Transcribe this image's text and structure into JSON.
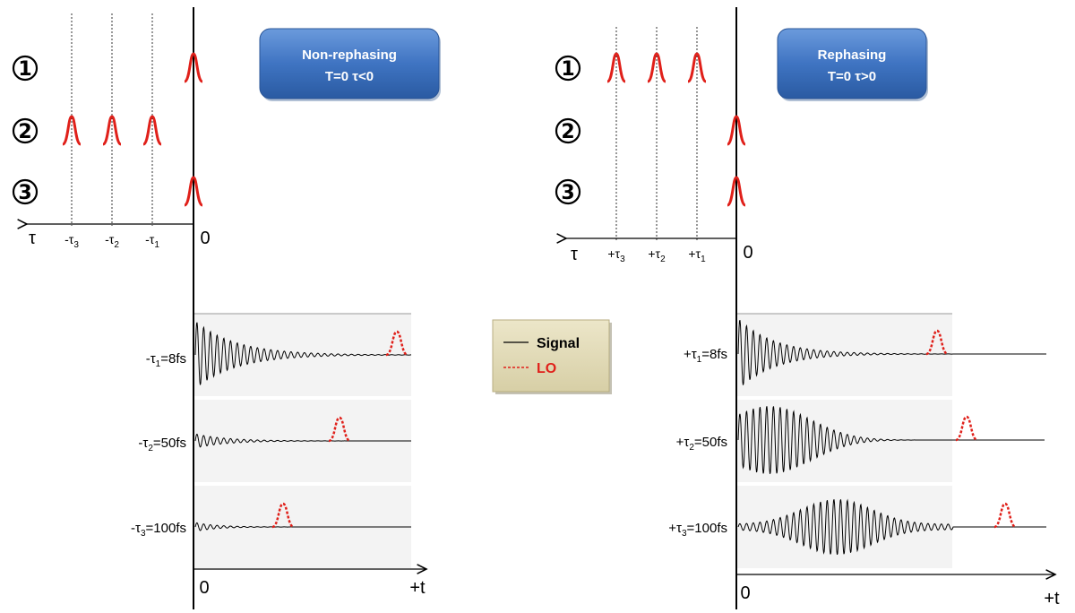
{
  "left_panel": {
    "title_line1": "Non-rephasing",
    "title_line2": "T=0  τ<0",
    "pulse_labels": [
      "1",
      "2",
      "3"
    ],
    "tau_axis_label": "τ",
    "tau_ticks": [
      {
        "sign": "-",
        "sub": "3"
      },
      {
        "sign": "-",
        "sub": "2"
      },
      {
        "sign": "-",
        "sub": "1"
      }
    ],
    "origin_label": "0",
    "time_origin_label": "0",
    "time_axis_label": "+t",
    "traces": [
      {
        "pre": "-τ",
        "sub": "1",
        "post": "=8fs"
      },
      {
        "pre": "-τ",
        "sub": "2",
        "post": "=50fs"
      },
      {
        "pre": "-τ",
        "sub": "3",
        "post": "=100fs"
      }
    ]
  },
  "right_panel": {
    "title_line1": "Rephasing",
    "title_line2": "T=0  τ>0",
    "pulse_labels": [
      "1",
      "2",
      "3"
    ],
    "tau_axis_label": "τ",
    "tau_ticks": [
      {
        "sign": "+",
        "sub": "3"
      },
      {
        "sign": "+",
        "sub": "2"
      },
      {
        "sign": "+",
        "sub": "1"
      }
    ],
    "origin_label": "0",
    "time_origin_label": "0",
    "time_axis_label": "+t",
    "traces": [
      {
        "pre": "+τ",
        "sub": "1",
        "post": "=8fs"
      },
      {
        "pre": "+τ",
        "sub": "2",
        "post": "=50fs"
      },
      {
        "pre": "+τ",
        "sub": "3",
        "post": "=100fs"
      }
    ]
  },
  "legend": {
    "signal_label": "Signal",
    "lo_label": "LO"
  },
  "colors": {
    "pulse": "#e0201a",
    "button_top": "#5b8fd1",
    "button_bottom": "#2c5fa8",
    "legend_bg": "#e2dbb8"
  }
}
